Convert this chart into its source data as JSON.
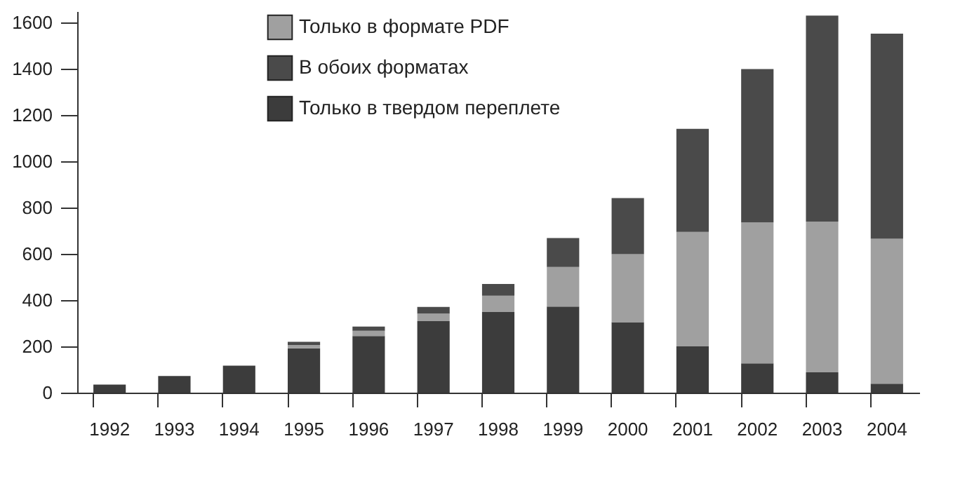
{
  "chart_data": {
    "type": "bar",
    "stacked": true,
    "categories": [
      "1992",
      "1993",
      "1994",
      "1995",
      "1996",
      "1997",
      "1998",
      "1999",
      "2000",
      "2001",
      "2002",
      "2003",
      "2004"
    ],
    "series": [
      {
        "name": "Только в твердом переплете",
        "color": "#3c3c3c",
        "values": [
          35,
          72,
          117,
          192,
          245,
          309,
          349,
          372,
          305,
          200,
          127,
          88,
          39
        ]
      },
      {
        "name": "Только в формате PDF",
        "color": "#a0a0a0",
        "values": [
          0,
          0,
          0,
          14,
          23,
          33,
          70,
          172,
          294,
          495,
          609,
          652,
          627
        ]
      },
      {
        "name": "В обоих форматах",
        "color": "#4a4a4a",
        "values": [
          0,
          0,
          0,
          14,
          18,
          29,
          51,
          125,
          243,
          446,
          664,
          891,
          887
        ]
      }
    ],
    "ylim": [
      0,
      1650
    ],
    "yticks": [
      0,
      200,
      400,
      600,
      800,
      1000,
      1200,
      1400,
      1600
    ],
    "grid": false,
    "legend": "top"
  }
}
